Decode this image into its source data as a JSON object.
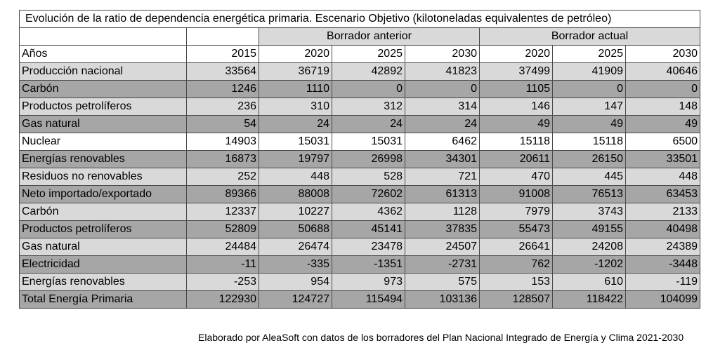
{
  "title": "Evolución de la ratio de dependencia energética primaria. Escenario Objetivo  (kilotoneladas equivalentes de petróleo)",
  "groups": {
    "prev": "Borrador anterior",
    "curr": "Borrador actual"
  },
  "header": {
    "label": "Años",
    "years": [
      "2015",
      "2020",
      "2025",
      "2030",
      "2020",
      "2025",
      "2030"
    ]
  },
  "rows": [
    {
      "label": "Producción nacional",
      "values": [
        "33564",
        "36719",
        "42892",
        "41823",
        "37499",
        "41909",
        "40646"
      ]
    },
    {
      "label": "Carbón",
      "values": [
        "1246",
        "1110",
        "0",
        "0",
        "1105",
        "0",
        "0"
      ]
    },
    {
      "label": "Productos petrolíferos",
      "values": [
        "236",
        "310",
        "312",
        "314",
        "146",
        "147",
        "148"
      ]
    },
    {
      "label": "Gas natural",
      "values": [
        "54",
        "24",
        "24",
        "24",
        "49",
        "49",
        "49"
      ]
    },
    {
      "label": "Nuclear",
      "values": [
        "14903",
        "15031",
        "15031",
        "6462",
        "15118",
        "15118",
        "6500"
      ]
    },
    {
      "label": "Energías renovables",
      "values": [
        "16873",
        "19797",
        "26998",
        "34301",
        "20611",
        "26150",
        "33501"
      ]
    },
    {
      "label": "Residuos no renovables",
      "values": [
        "252",
        "448",
        "528",
        "721",
        "470",
        "445",
        "448"
      ]
    },
    {
      "label": "Neto importado/exportado",
      "values": [
        "89366",
        "88008",
        "72602",
        "61313",
        "91008",
        "76513",
        "63453"
      ]
    },
    {
      "label": "Carbón",
      "values": [
        "12337",
        "10227",
        "4362",
        "1128",
        "7979",
        "3743",
        "2133"
      ]
    },
    {
      "label": "Productos petrolíferos",
      "values": [
        "52809",
        "50688",
        "45141",
        "37835",
        "55473",
        "49155",
        "40498"
      ]
    },
    {
      "label": "Gas natural",
      "values": [
        "24484",
        "26474",
        "23478",
        "24507",
        "26641",
        "24208",
        "24389"
      ]
    },
    {
      "label": "Electricidad",
      "values": [
        "-11",
        "-335",
        "-1351",
        "-2731",
        "762",
        "-1202",
        "-3448"
      ]
    },
    {
      "label": "Energías renovables",
      "values": [
        "-253",
        "954",
        "973",
        "575",
        "153",
        "610",
        "-119"
      ]
    },
    {
      "label": "Total Energía Primaria",
      "values": [
        "122930",
        "124727",
        "115494",
        "103136",
        "128507",
        "118422",
        "104099"
      ]
    }
  ],
  "footnote": "Elaborado por AleaSoft con datos de los borradores del Plan Nacional Integrado de Energía y Clima 2021-2030"
}
